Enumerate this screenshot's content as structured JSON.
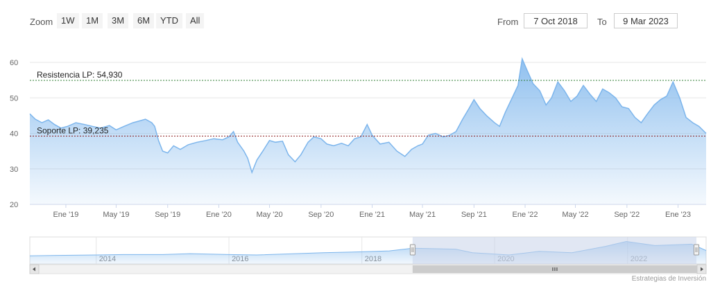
{
  "zoom": {
    "label": "Zoom",
    "buttons": [
      "1W",
      "1M",
      "3M",
      "6M",
      "YTD",
      "All"
    ]
  },
  "range": {
    "from_label": "From",
    "from_value": "7 Oct 2018",
    "to_label": "To",
    "to_value": "9 Mar 2023"
  },
  "credit": "Estrategias de Inversión",
  "colors": {
    "series_line": "#7cb5ec",
    "resistance": "#2e7d32",
    "support": "#8b1a1a",
    "navigator_mask": "#c9d4ea"
  },
  "chart_data": {
    "type": "area",
    "title": "",
    "xlabel": "",
    "ylabel": "",
    "ylim": [
      20,
      60
    ],
    "y_ticks": [
      20,
      30,
      40,
      50,
      60
    ],
    "x_range": [
      "2018-10-07",
      "2023-03-09"
    ],
    "x_ticks": [
      {
        "date": "2019-01-01",
        "label": "Ene '19"
      },
      {
        "date": "2019-05-01",
        "label": "May '19"
      },
      {
        "date": "2019-09-01",
        "label": "Sep '19"
      },
      {
        "date": "2020-01-01",
        "label": "Ene '20"
      },
      {
        "date": "2020-05-01",
        "label": "May '20"
      },
      {
        "date": "2020-09-01",
        "label": "Sep '20"
      },
      {
        "date": "2021-01-01",
        "label": "Ene '21"
      },
      {
        "date": "2021-05-01",
        "label": "May '21"
      },
      {
        "date": "2021-09-01",
        "label": "Sep '21"
      },
      {
        "date": "2022-01-01",
        "label": "Ene '22"
      },
      {
        "date": "2022-05-01",
        "label": "May '22"
      },
      {
        "date": "2022-09-01",
        "label": "Sep '22"
      },
      {
        "date": "2023-01-01",
        "label": "Ene '23"
      }
    ],
    "grid": true,
    "legend": "none",
    "lines": [
      {
        "label": "Resistencia LP: 54,930",
        "value": 54.93,
        "style": "dashed"
      },
      {
        "label": "Soporte LP: 39,235",
        "value": 39.235,
        "style": "dashed"
      }
    ],
    "series": [
      {
        "points": [
          [
            "2018-10-07",
            45.5
          ],
          [
            "2018-10-20",
            44.0
          ],
          [
            "2018-11-05",
            43.0
          ],
          [
            "2018-11-20",
            43.8
          ],
          [
            "2018-12-05",
            42.5
          ],
          [
            "2018-12-20",
            41.5
          ],
          [
            "2019-01-05",
            42.0
          ],
          [
            "2019-01-25",
            43.0
          ],
          [
            "2019-02-15",
            42.5
          ],
          [
            "2019-03-05",
            42.0
          ],
          [
            "2019-03-25",
            41.5
          ],
          [
            "2019-04-15",
            42.2
          ],
          [
            "2019-05-01",
            41.0
          ],
          [
            "2019-05-20",
            42.0
          ],
          [
            "2019-06-10",
            43.0
          ],
          [
            "2019-06-25",
            43.5
          ],
          [
            "2019-07-10",
            44.0
          ],
          [
            "2019-07-25",
            43.0
          ],
          [
            "2019-08-01",
            42.0
          ],
          [
            "2019-08-10",
            38.0
          ],
          [
            "2019-08-20",
            35.0
          ],
          [
            "2019-09-01",
            34.5
          ],
          [
            "2019-09-15",
            36.5
          ],
          [
            "2019-10-01",
            35.5
          ],
          [
            "2019-10-20",
            36.8
          ],
          [
            "2019-11-10",
            37.5
          ],
          [
            "2019-12-01",
            38.0
          ],
          [
            "2019-12-20",
            38.5
          ],
          [
            "2020-01-10",
            38.2
          ],
          [
            "2020-01-25",
            39.0
          ],
          [
            "2020-02-05",
            40.5
          ],
          [
            "2020-02-15",
            37.5
          ],
          [
            "2020-03-01",
            35.0
          ],
          [
            "2020-03-10",
            33.0
          ],
          [
            "2020-03-20",
            29.0
          ],
          [
            "2020-04-01",
            32.5
          ],
          [
            "2020-04-15",
            35.0
          ],
          [
            "2020-05-01",
            38.0
          ],
          [
            "2020-05-15",
            37.5
          ],
          [
            "2020-06-01",
            37.8
          ],
          [
            "2020-06-15",
            34.0
          ],
          [
            "2020-07-01",
            32.0
          ],
          [
            "2020-07-15",
            34.0
          ],
          [
            "2020-08-01",
            37.5
          ],
          [
            "2020-08-15",
            39.0
          ],
          [
            "2020-09-01",
            38.5
          ],
          [
            "2020-09-15",
            37.0
          ],
          [
            "2020-10-01",
            36.5
          ],
          [
            "2020-10-20",
            37.2
          ],
          [
            "2020-11-05",
            36.5
          ],
          [
            "2020-11-20",
            38.5
          ],
          [
            "2020-12-05",
            39.0
          ],
          [
            "2020-12-20",
            42.5
          ],
          [
            "2021-01-01",
            39.5
          ],
          [
            "2021-01-20",
            37.0
          ],
          [
            "2021-02-10",
            37.5
          ],
          [
            "2021-03-01",
            35.0
          ],
          [
            "2021-03-20",
            33.5
          ],
          [
            "2021-04-05",
            35.5
          ],
          [
            "2021-04-20",
            36.5
          ],
          [
            "2021-05-01",
            37.0
          ],
          [
            "2021-05-15",
            39.5
          ],
          [
            "2021-06-01",
            40.0
          ],
          [
            "2021-06-20",
            39.0
          ],
          [
            "2021-07-05",
            39.5
          ],
          [
            "2021-07-20",
            40.5
          ],
          [
            "2021-08-05",
            44.0
          ],
          [
            "2021-08-20",
            47.0
          ],
          [
            "2021-09-01",
            49.5
          ],
          [
            "2021-09-15",
            47.0
          ],
          [
            "2021-10-01",
            45.0
          ],
          [
            "2021-10-20",
            43.0
          ],
          [
            "2021-11-01",
            42.0
          ],
          [
            "2021-11-15",
            46.0
          ],
          [
            "2021-12-01",
            50.0
          ],
          [
            "2021-12-15",
            53.5
          ],
          [
            "2021-12-25",
            61.0
          ],
          [
            "2022-01-05",
            58.0
          ],
          [
            "2022-01-20",
            54.0
          ],
          [
            "2022-02-05",
            52.0
          ],
          [
            "2022-02-20",
            48.0
          ],
          [
            "2022-03-05",
            50.0
          ],
          [
            "2022-03-20",
            54.5
          ],
          [
            "2022-04-05",
            52.0
          ],
          [
            "2022-04-20",
            49.0
          ],
          [
            "2022-05-05",
            50.5
          ],
          [
            "2022-05-20",
            53.5
          ],
          [
            "2022-06-05",
            51.0
          ],
          [
            "2022-06-20",
            49.0
          ],
          [
            "2022-07-05",
            52.5
          ],
          [
            "2022-07-20",
            51.5
          ],
          [
            "2022-08-05",
            50.0
          ],
          [
            "2022-08-20",
            47.5
          ],
          [
            "2022-09-05",
            47.0
          ],
          [
            "2022-09-20",
            44.5
          ],
          [
            "2022-10-05",
            43.0
          ],
          [
            "2022-10-20",
            45.5
          ],
          [
            "2022-11-05",
            48.0
          ],
          [
            "2022-11-20",
            49.5
          ],
          [
            "2022-12-05",
            50.5
          ],
          [
            "2022-12-20",
            54.5
          ],
          [
            "2023-01-05",
            50.0
          ],
          [
            "2023-01-20",
            44.5
          ],
          [
            "2023-02-05",
            43.0
          ],
          [
            "2023-02-20",
            42.0
          ],
          [
            "2023-03-09",
            40.0
          ]
        ]
      }
    ],
    "navigator": {
      "x_labels": [
        "2014",
        "2016",
        "2018",
        "2020",
        "2022"
      ],
      "selected_range": [
        "2018-10-07",
        "2023-03-09"
      ],
      "points": [
        [
          "2013-01-01",
          28
        ],
        [
          "2013-06-01",
          29
        ],
        [
          "2014-01-01",
          30
        ],
        [
          "2014-06-01",
          31
        ],
        [
          "2015-01-01",
          31
        ],
        [
          "2015-06-01",
          33
        ],
        [
          "2016-01-01",
          31
        ],
        [
          "2016-06-01",
          30
        ],
        [
          "2017-01-01",
          33
        ],
        [
          "2017-06-01",
          35
        ],
        [
          "2018-01-01",
          37
        ],
        [
          "2018-06-01",
          39
        ],
        [
          "2018-10-07",
          45
        ],
        [
          "2019-06-01",
          43
        ],
        [
          "2019-09-01",
          35
        ],
        [
          "2020-03-20",
          30
        ],
        [
          "2020-09-01",
          38
        ],
        [
          "2021-03-01",
          35
        ],
        [
          "2021-09-01",
          49
        ],
        [
          "2021-12-25",
          60
        ],
        [
          "2022-06-01",
          51
        ],
        [
          "2022-12-20",
          54
        ],
        [
          "2023-03-09",
          40
        ]
      ]
    }
  }
}
